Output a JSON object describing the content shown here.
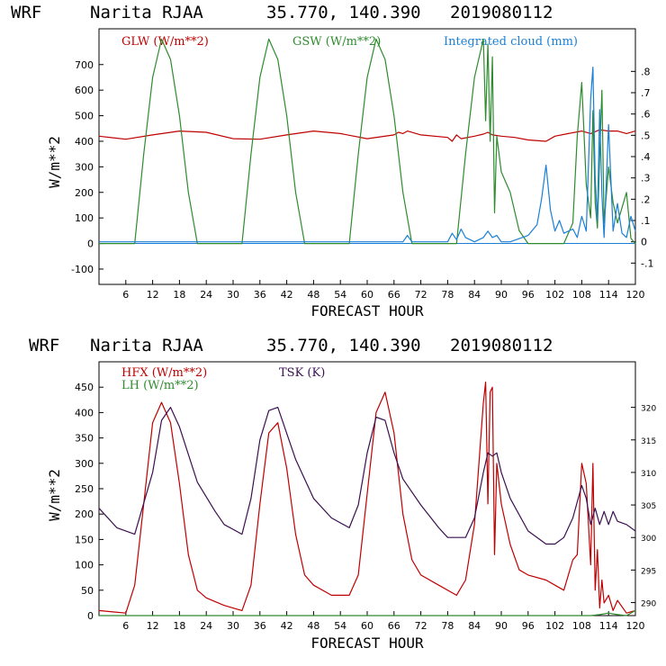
{
  "colors": {
    "red": "#c00000",
    "green": "#2e8b2e",
    "blue": "#1a7fd6",
    "purple": "#3a1050"
  },
  "panels": [
    {
      "header": {
        "model": "WRF",
        "station": "Narita RJAA",
        "coords": "35.770, 140.390",
        "init": "2019080112"
      },
      "xlabel": "FORECAST HOUR",
      "ylabel": "W/m**2",
      "legend": {
        "glw": "GLW (W/m**2)",
        "gsw": "GSW (W/m**2)",
        "cloud": "Integrated cloud (mm)"
      }
    },
    {
      "header": {
        "model": "WRF",
        "station": "Narita RJAA",
        "coords": "35.770, 140.390",
        "init": "2019080112"
      },
      "xlabel": "FORECAST HOUR",
      "ylabel": "W/m**2",
      "legend": {
        "hfx": "HFX (W/m**2)",
        "lh": "LH  (W/m**2)",
        "tsk": "TSK (K)"
      }
    }
  ],
  "chart_data": [
    {
      "type": "line",
      "xlim": [
        0,
        120
      ],
      "ylim": [
        -160,
        840
      ],
      "xticks": [
        6,
        12,
        18,
        24,
        30,
        36,
        42,
        48,
        54,
        60,
        66,
        72,
        78,
        84,
        90,
        96,
        102,
        108,
        114,
        120
      ],
      "yticks": [
        -100,
        0,
        100,
        200,
        300,
        400,
        500,
        600,
        700
      ],
      "y2lim": [
        -0.2,
        1.0
      ],
      "y2ticks": [
        -0.1,
        0,
        0.1,
        0.2,
        0.3,
        0.4,
        0.5,
        0.6,
        0.7,
        0.8
      ],
      "y2ticklabels": [
        "-.1",
        "0",
        ".1",
        ".2",
        ".3",
        ".4",
        ".5",
        ".6",
        ".7",
        ".8"
      ],
      "series": [
        {
          "name": "GLW (W/m**2)",
          "color": "red",
          "axis": "left",
          "x": [
            0,
            6,
            12,
            18,
            24,
            30,
            36,
            42,
            48,
            54,
            60,
            66,
            67,
            68,
            69,
            72,
            78,
            79,
            80,
            81,
            84,
            86,
            87,
            88,
            90,
            93,
            96,
            100,
            102,
            105,
            108,
            110,
            112,
            114,
            116,
            118,
            120
          ],
          "y": [
            420,
            408,
            425,
            440,
            435,
            410,
            408,
            425,
            440,
            430,
            410,
            425,
            435,
            430,
            440,
            425,
            415,
            400,
            425,
            410,
            420,
            428,
            435,
            425,
            420,
            415,
            405,
            400,
            420,
            430,
            440,
            430,
            445,
            440,
            440,
            430,
            440
          ]
        },
        {
          "name": "GSW (W/m**2)",
          "color": "green",
          "axis": "left",
          "x": [
            0,
            8,
            10,
            12,
            14,
            16,
            18,
            20,
            22,
            24,
            32,
            34,
            36,
            38,
            40,
            42,
            44,
            46,
            48,
            56,
            58,
            60,
            62,
            64,
            66,
            68,
            70,
            72,
            80,
            82,
            84,
            86,
            86.5,
            87,
            87.5,
            88,
            88.5,
            89,
            90,
            92,
            94,
            96,
            104,
            106,
            107,
            108,
            109,
            110,
            110.5,
            111,
            111.5,
            112,
            112.5,
            113,
            114,
            115,
            116,
            118,
            119,
            120
          ],
          "y": [
            0,
            0,
            350,
            650,
            800,
            720,
            500,
            200,
            0,
            0,
            0,
            350,
            650,
            800,
            720,
            500,
            200,
            0,
            0,
            0,
            350,
            650,
            800,
            720,
            500,
            200,
            0,
            0,
            0,
            350,
            650,
            800,
            480,
            780,
            400,
            730,
            120,
            420,
            280,
            200,
            50,
            0,
            0,
            80,
            420,
            630,
            230,
            100,
            520,
            160,
            60,
            340,
            600,
            80,
            300,
            160,
            80,
            200,
            20,
            0
          ]
        },
        {
          "name": "Integrated cloud (mm)",
          "color": "blue",
          "axis": "right",
          "x": [
            0,
            68,
            69,
            70,
            78,
            79,
            80,
            81,
            82,
            84,
            86,
            87,
            88,
            89,
            90,
            92,
            96,
            98,
            99,
            100,
            101,
            102,
            103,
            104,
            106,
            107,
            108,
            109,
            110,
            110.5,
            111,
            111.5,
            112,
            112.5,
            113,
            114,
            115,
            116,
            117,
            118,
            119,
            120
          ],
          "y": [
            0,
            0,
            0.03,
            0,
            0,
            0.04,
            0.01,
            0.06,
            0.02,
            0,
            0.02,
            0.05,
            0.02,
            0.03,
            0,
            0,
            0.03,
            0.08,
            0.2,
            0.36,
            0.15,
            0.05,
            0.1,
            0.04,
            0.06,
            0.02,
            0.12,
            0.05,
            0.67,
            0.82,
            0.3,
            0.1,
            0.62,
            0.22,
            0.02,
            0.55,
            0.05,
            0.18,
            0.04,
            0.02,
            0.12,
            0.05
          ]
        }
      ]
    },
    {
      "type": "line",
      "xlim": [
        0,
        120
      ],
      "ylim": [
        0,
        500
      ],
      "xticks": [
        6,
        12,
        18,
        24,
        30,
        36,
        42,
        48,
        54,
        60,
        66,
        72,
        78,
        84,
        90,
        96,
        102,
        108,
        114,
        120
      ],
      "yticks": [
        0,
        50,
        100,
        150,
        200,
        250,
        300,
        350,
        400,
        450
      ],
      "y2lim": [
        288,
        327
      ],
      "y2ticks": [
        290,
        295,
        300,
        305,
        310,
        315,
        320
      ],
      "series": [
        {
          "name": "HFX (W/m**2)",
          "color": "red",
          "axis": "left",
          "x": [
            0,
            6,
            8,
            10,
            12,
            14,
            16,
            18,
            20,
            22,
            24,
            28,
            32,
            34,
            36,
            38,
            40,
            42,
            44,
            46,
            48,
            52,
            56,
            58,
            60,
            62,
            64,
            66,
            68,
            70,
            72,
            76,
            80,
            82,
            84,
            86,
            86.5,
            87,
            87.5,
            88,
            88.5,
            89,
            90,
            92,
            94,
            96,
            100,
            102,
            104,
            105,
            106,
            107,
            108,
            109,
            110,
            110.5,
            111,
            111.5,
            112,
            112.5,
            113,
            114,
            115,
            116,
            118,
            120
          ],
          "y": [
            10,
            5,
            60,
            220,
            380,
            420,
            380,
            260,
            120,
            50,
            35,
            20,
            10,
            60,
            220,
            360,
            380,
            290,
            160,
            80,
            60,
            40,
            40,
            80,
            240,
            400,
            440,
            360,
            200,
            110,
            80,
            60,
            40,
            70,
            180,
            420,
            460,
            220,
            440,
            450,
            120,
            300,
            220,
            140,
            90,
            80,
            70,
            60,
            50,
            80,
            110,
            120,
            300,
            260,
            100,
            300,
            50,
            130,
            15,
            70,
            25,
            40,
            10,
            30,
            5,
            10
          ]
        },
        {
          "name": "LH  (W/m**2)",
          "color": "green",
          "axis": "left",
          "x": [
            0,
            108,
            110,
            112,
            114,
            116,
            118,
            120
          ],
          "y": [
            0,
            0,
            0,
            2,
            5,
            2,
            0,
            10
          ]
        },
        {
          "name": "TSK (K)",
          "color": "purple",
          "axis": "right",
          "x": [
            0,
            4,
            8,
            12,
            14,
            16,
            18,
            22,
            26,
            28,
            32,
            34,
            36,
            38,
            40,
            44,
            48,
            52,
            56,
            58,
            60,
            62,
            64,
            66,
            68,
            72,
            76,
            78,
            82,
            84,
            86,
            87,
            88,
            89,
            90,
            92,
            96,
            100,
            102,
            104,
            106,
            108,
            109,
            110,
            111,
            112,
            113,
            114,
            115,
            116,
            118,
            120
          ],
          "y": [
            304.5,
            301.5,
            300.5,
            310,
            318,
            320,
            317,
            308.5,
            304,
            302,
            300.5,
            306,
            315,
            319.5,
            320,
            312,
            306,
            303,
            301.5,
            305,
            313,
            318.5,
            318,
            313,
            309,
            305,
            301.5,
            300,
            300,
            303,
            310,
            313,
            312.5,
            313,
            310,
            306,
            301,
            299,
            299,
            300,
            303,
            308,
            306,
            302,
            304.5,
            302,
            304,
            302,
            304,
            302.5,
            302,
            301
          ]
        }
      ]
    }
  ]
}
